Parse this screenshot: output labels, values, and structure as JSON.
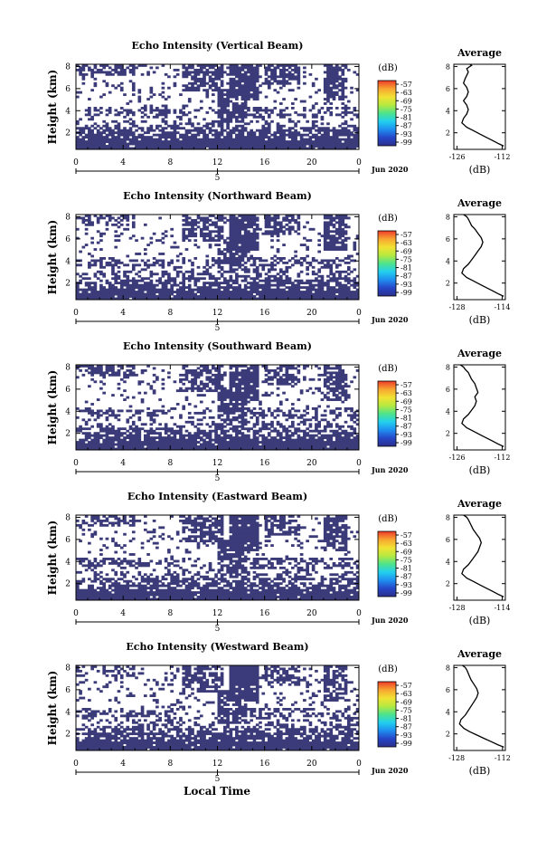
{
  "figure": {
    "x_axis_label": "Local Time",
    "date_label": "Jun 2020",
    "day_label": "5",
    "colorbar_unit": "(dB)",
    "colorbar_ticks": [
      "-57",
      "-63",
      "-69",
      "-75",
      "-81",
      "-87",
      "-93",
      "-99"
    ],
    "colormap": [
      "#2c2f8a",
      "#2546c8",
      "#1f8ff0",
      "#23d0ee",
      "#4ee48a",
      "#b7e940",
      "#f2e233",
      "#f7a531",
      "#ee3a2a"
    ],
    "heatmap_fill": "#3b3b7a",
    "average_title": "Average",
    "average_xlabel": "(dB)"
  },
  "chart_data": [
    {
      "type": "heatmap",
      "title": "Echo Intensity (Vertical Beam)",
      "ylabel": "Height (km)",
      "x_ticks": [
        "0",
        "4",
        "8",
        "12",
        "16",
        "20",
        "0"
      ],
      "xlim": [
        0,
        24
      ],
      "y_ticks": [
        "2",
        "4",
        "6",
        "8"
      ],
      "ylim": [
        0.5,
        8.2
      ],
      "value_range": [
        -99,
        -57
      ],
      "average": {
        "type": "line",
        "x_ticks": [
          "-126",
          "-112"
        ],
        "xlim": [
          -127,
          -111
        ],
        "ylim": [
          0.5,
          8.2
        ],
        "y_ticks": [
          "2",
          "4",
          "6",
          "8"
        ],
        "x": [
          -111.5,
          -113,
          -115,
          -117,
          -119,
          -121,
          -123,
          -124.5,
          -124,
          -123,
          -122.5,
          -123,
          -124,
          -123,
          -122.5,
          -123,
          -124,
          -123.5,
          -123,
          -122.5,
          -123,
          -122,
          -121.5,
          -122
        ],
        "y": [
          0.8,
          1.0,
          1.3,
          1.6,
          1.9,
          2.2,
          2.5,
          2.9,
          3.3,
          3.7,
          4.1,
          4.5,
          4.9,
          5.3,
          5.7,
          6.1,
          6.5,
          6.9,
          7.2,
          7.5,
          7.8,
          8.0,
          8.1,
          8.2
        ]
      }
    },
    {
      "type": "heatmap",
      "title": "Echo Intensity (Northward Beam)",
      "ylabel": "Height (km)",
      "x_ticks": [
        "0",
        "4",
        "8",
        "12",
        "16",
        "20",
        "0"
      ],
      "xlim": [
        0,
        24
      ],
      "y_ticks": [
        "2",
        "4",
        "6",
        "8"
      ],
      "ylim": [
        0.5,
        8.2
      ],
      "value_range": [
        -99,
        -57
      ],
      "average": {
        "type": "line",
        "x_ticks": [
          "-128",
          "-114"
        ],
        "xlim": [
          -129,
          -113
        ],
        "ylim": [
          0.5,
          8.2
        ],
        "y_ticks": [
          "2",
          "4",
          "6",
          "8"
        ],
        "x": [
          -113.5,
          -115,
          -117,
          -119,
          -121,
          -123,
          -125,
          -126.5,
          -126,
          -124.5,
          -123.5,
          -122.5,
          -121.5,
          -120.5,
          -120,
          -120.5,
          -121.5,
          -122.5,
          -123.5,
          -124,
          -124.5,
          -125,
          -125.5,
          -126
        ],
        "y": [
          0.8,
          1.0,
          1.3,
          1.6,
          1.9,
          2.2,
          2.5,
          2.9,
          3.3,
          3.7,
          4.1,
          4.5,
          4.9,
          5.3,
          5.7,
          6.1,
          6.5,
          6.9,
          7.2,
          7.5,
          7.8,
          8.0,
          8.1,
          8.2
        ]
      }
    },
    {
      "type": "heatmap",
      "title": "Echo Intensity (Southward Beam)",
      "ylabel": "Height (km)",
      "x_ticks": [
        "0",
        "4",
        "8",
        "12",
        "16",
        "20",
        "0"
      ],
      "xlim": [
        0,
        24
      ],
      "y_ticks": [
        "2",
        "4",
        "6",
        "8"
      ],
      "ylim": [
        0.5,
        8.2
      ],
      "value_range": [
        -99,
        -57
      ],
      "average": {
        "type": "line",
        "x_ticks": [
          "-126",
          "-112"
        ],
        "xlim": [
          -127,
          -111
        ],
        "ylim": [
          0.5,
          8.2
        ],
        "y_ticks": [
          "2",
          "4",
          "6",
          "8"
        ],
        "x": [
          -111.5,
          -113,
          -115,
          -117,
          -119,
          -121,
          -123,
          -124.5,
          -124,
          -122.5,
          -121.5,
          -120.5,
          -120,
          -120.5,
          -119.5,
          -120,
          -120.5,
          -121.5,
          -122,
          -122.5,
          -123.5,
          -124,
          -124.5,
          -125
        ],
        "y": [
          0.8,
          1.0,
          1.3,
          1.6,
          1.9,
          2.2,
          2.5,
          2.9,
          3.3,
          3.7,
          4.1,
          4.5,
          4.9,
          5.3,
          5.7,
          6.1,
          6.5,
          6.9,
          7.2,
          7.5,
          7.8,
          8.0,
          8.1,
          8.2
        ]
      }
    },
    {
      "type": "heatmap",
      "title": "Echo Intensity (Eastward Beam)",
      "ylabel": "Height (km)",
      "x_ticks": [
        "0",
        "4",
        "8",
        "12",
        "16",
        "20",
        "0"
      ],
      "xlim": [
        0,
        24
      ],
      "y_ticks": [
        "2",
        "4",
        "6",
        "8"
      ],
      "ylim": [
        0.5,
        8.2
      ],
      "value_range": [
        -99,
        -57
      ],
      "average": {
        "type": "line",
        "x_ticks": [
          "-128",
          "-114"
        ],
        "xlim": [
          -129,
          -113
        ],
        "ylim": [
          0.5,
          8.2
        ],
        "y_ticks": [
          "2",
          "4",
          "6",
          "8"
        ],
        "x": [
          -113.5,
          -115,
          -117,
          -119,
          -121,
          -123,
          -125,
          -126.5,
          -126,
          -124.5,
          -123.5,
          -122.5,
          -121.5,
          -121,
          -120.5,
          -121,
          -122,
          -123,
          -123.5,
          -124,
          -124.5,
          -125,
          -125.5,
          -126
        ],
        "y": [
          0.8,
          1.0,
          1.3,
          1.6,
          1.9,
          2.2,
          2.5,
          2.9,
          3.3,
          3.7,
          4.1,
          4.5,
          4.9,
          5.3,
          5.7,
          6.1,
          6.5,
          6.9,
          7.2,
          7.5,
          7.8,
          8.0,
          8.1,
          8.2
        ]
      }
    },
    {
      "type": "heatmap",
      "title": "Echo Intensity (Westward Beam)",
      "ylabel": "Height (km)",
      "x_ticks": [
        "0",
        "4",
        "8",
        "12",
        "16",
        "20",
        "0"
      ],
      "xlim": [
        0,
        24
      ],
      "y_ticks": [
        "2",
        "4",
        "6",
        "8"
      ],
      "ylim": [
        0.5,
        8.2
      ],
      "value_range": [
        -99,
        -57
      ],
      "average": {
        "type": "line",
        "x_ticks": [
          "-128",
          "-112"
        ],
        "xlim": [
          -129,
          -111
        ],
        "ylim": [
          0.5,
          8.2
        ],
        "y_ticks": [
          "2",
          "4",
          "6",
          "8"
        ],
        "x": [
          -111.5,
          -113.5,
          -116,
          -118.5,
          -121,
          -123.5,
          -125.5,
          -127,
          -126.5,
          -125,
          -124,
          -123,
          -122,
          -121,
          -120.5,
          -121,
          -122,
          -123,
          -123.5,
          -124,
          -124.5,
          -125,
          -125.5,
          -126
        ],
        "y": [
          0.8,
          1.0,
          1.3,
          1.6,
          1.9,
          2.2,
          2.5,
          2.9,
          3.3,
          3.7,
          4.1,
          4.5,
          4.9,
          5.3,
          5.7,
          6.1,
          6.5,
          6.9,
          7.2,
          7.5,
          7.8,
          8.0,
          8.1,
          8.2
        ]
      }
    }
  ]
}
